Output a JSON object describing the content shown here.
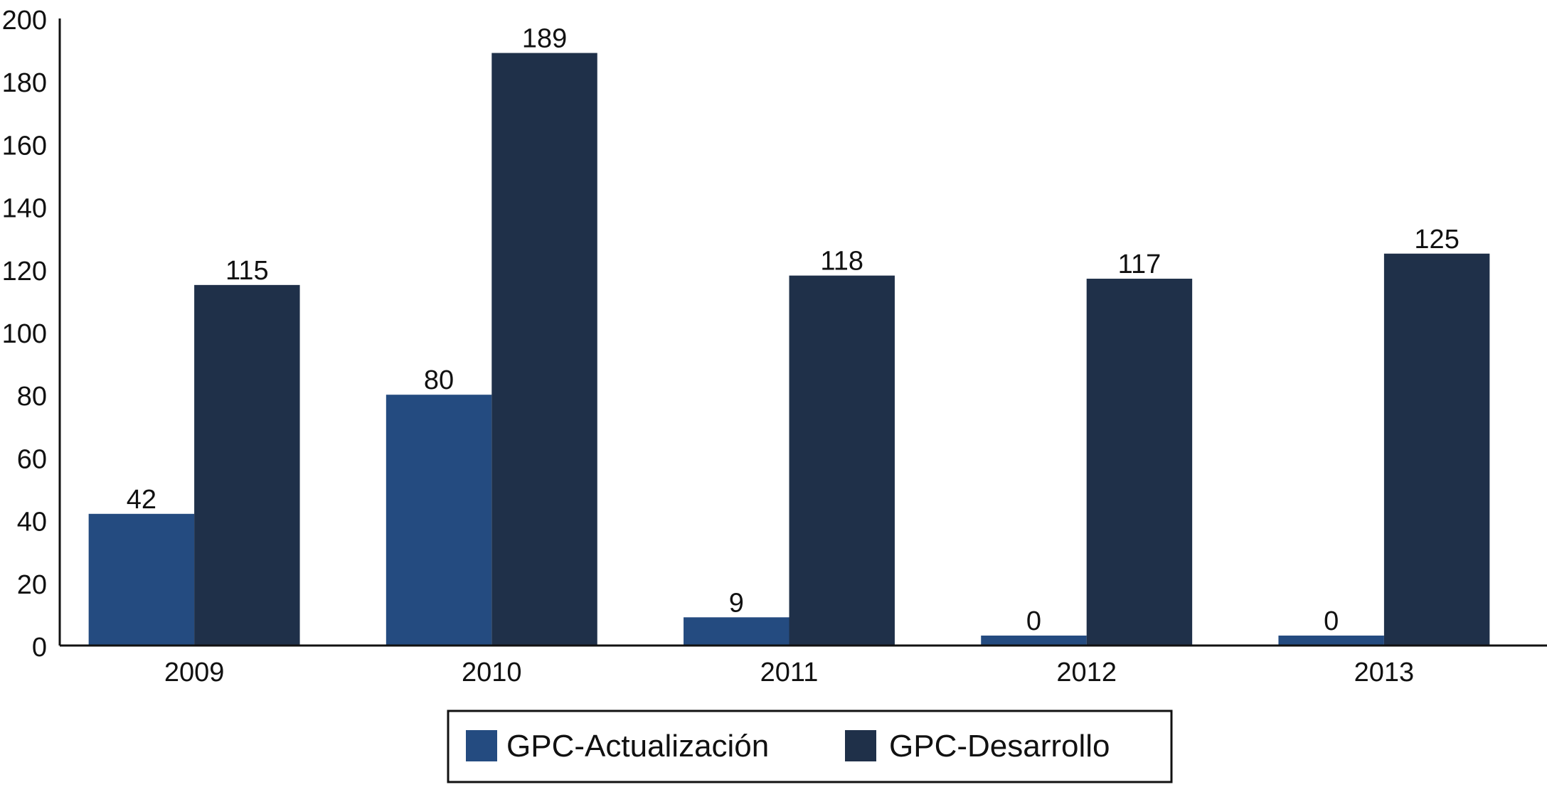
{
  "chart_data": {
    "type": "bar",
    "categories": [
      "2009",
      "2010",
      "2011",
      "2012",
      "2013"
    ],
    "series": [
      {
        "name": "GPC-Actualización",
        "values": [
          42,
          80,
          9,
          0,
          0
        ],
        "color": "#244b80"
      },
      {
        "name": "GPC-Desarrollo",
        "values": [
          115,
          189,
          118,
          117,
          125
        ],
        "color": "#1f3049"
      }
    ],
    "y_ticks": [
      "0",
      "20",
      "40",
      "60",
      "80",
      "100",
      "120",
      "140",
      "160",
      "180",
      "200"
    ],
    "ylim": [
      0,
      200
    ],
    "grid": false,
    "legend": "bottom-center",
    "data_labels": true
  }
}
